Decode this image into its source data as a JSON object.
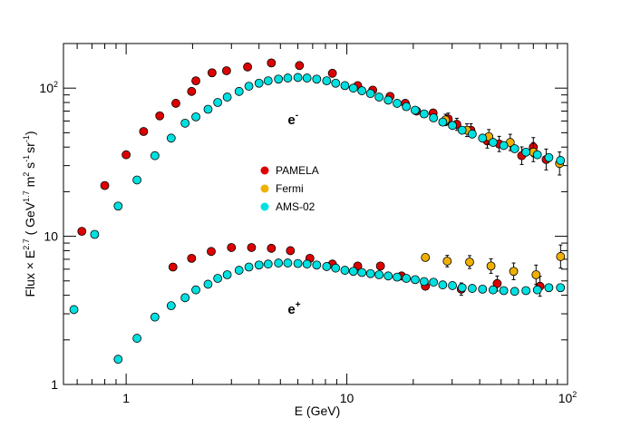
{
  "chart_data": {
    "type": "scatter",
    "xlabel": "E (GeV)",
    "ylabel": {
      "base": "Flux × E",
      "exp": "2.7",
      "unit_pre": " ( GeV",
      "unit_exp": "1.7",
      "unit_mid": " m",
      "unit_m_exp": "2",
      "unit_s": " s",
      "unit_s_exp": "-1",
      "unit_sr": "sr",
      "unit_sr_exp": "-1",
      "unit_post": ")"
    },
    "x_scale": "log",
    "y_scale": "log",
    "xlim": [
      0.52,
      100
    ],
    "ylim": [
      1,
      200
    ],
    "x_ticks": [
      {
        "value": 1,
        "label": "1"
      },
      {
        "value": 10,
        "label": "10"
      },
      {
        "value": 100,
        "label": "10",
        "exp": "2"
      }
    ],
    "y_ticks": [
      {
        "value": 1,
        "label": "1"
      },
      {
        "value": 10,
        "label": "10"
      },
      {
        "value": 100,
        "label": "10",
        "exp": "2"
      }
    ],
    "legend_position": "center",
    "annotations": [
      {
        "text": "e",
        "sup": "-",
        "x": 5.4,
        "y": 57
      },
      {
        "text": "e",
        "sup": "+",
        "x": 5.4,
        "y": 3.0
      }
    ],
    "series": [
      {
        "name": "PAMELA",
        "color": "#dd0000",
        "points": [
          [
            0.63,
            10.8
          ],
          [
            0.8,
            22
          ],
          [
            1.0,
            35.5
          ],
          [
            1.2,
            51
          ],
          [
            1.42,
            65
          ],
          [
            1.68,
            79
          ],
          [
            1.98,
            95
          ],
          [
            2.07,
            112
          ],
          [
            2.45,
            127
          ],
          [
            2.85,
            131
          ],
          [
            3.55,
            139
          ],
          [
            4.55,
            148
          ],
          [
            6.1,
            142
          ],
          [
            8.6,
            126
          ],
          [
            11.2,
            104
          ],
          [
            13.1,
            97
          ],
          [
            15.7,
            88
          ],
          [
            18.4,
            79
          ],
          [
            20.7,
            70
          ],
          [
            24.6,
            68
          ],
          [
            28.8,
            62
          ],
          [
            31.5,
            57
          ],
          [
            36.5,
            52
          ],
          [
            43.3,
            44
          ],
          [
            49,
            42
          ],
          [
            62,
            35
          ],
          [
            70,
            40
          ],
          [
            80,
            33
          ],
          [
            1.63,
            6.2
          ],
          [
            1.98,
            7.1
          ],
          [
            2.43,
            7.9
          ],
          [
            3.0,
            8.4
          ],
          [
            3.7,
            8.4
          ],
          [
            4.55,
            8.3
          ],
          [
            5.55,
            8.0
          ],
          [
            6.8,
            7.1
          ],
          [
            8.6,
            6.5
          ],
          [
            11.2,
            6.3
          ],
          [
            14.2,
            6.3
          ],
          [
            17.7,
            5.4
          ],
          [
            22.7,
            4.6
          ],
          [
            33,
            4.4
          ],
          [
            48,
            4.8
          ],
          [
            75,
            4.6
          ]
        ]
      },
      {
        "name": "Fermi",
        "color": "#f0b000",
        "points": [
          [
            28,
            61
          ],
          [
            35,
            52
          ],
          [
            44,
            47
          ],
          [
            55,
            43
          ],
          [
            70,
            37
          ],
          [
            92,
            31
          ],
          [
            22.7,
            7.2
          ],
          [
            28.5,
            6.8
          ],
          [
            36,
            6.7
          ],
          [
            45,
            6.3
          ],
          [
            57,
            5.8
          ],
          [
            72,
            5.5
          ],
          [
            93,
            7.3
          ]
        ]
      },
      {
        "name": "AMS-02",
        "color": "#00e0e0",
        "points": [
          [
            0.58,
            3.2
          ],
          [
            0.72,
            10.3
          ],
          [
            0.92,
            16
          ],
          [
            1.12,
            24
          ],
          [
            1.35,
            35
          ],
          [
            1.6,
            46
          ],
          [
            1.85,
            58
          ],
          [
            2.07,
            64
          ],
          [
            2.35,
            72
          ],
          [
            2.6,
            80
          ],
          [
            2.87,
            87
          ],
          [
            3.25,
            95
          ],
          [
            3.6,
            103
          ],
          [
            4.0,
            108
          ],
          [
            4.4,
            112
          ],
          [
            4.9,
            115
          ],
          [
            5.4,
            117
          ],
          [
            6.0,
            118
          ],
          [
            6.6,
            117
          ],
          [
            7.3,
            115
          ],
          [
            8.1,
            112
          ],
          [
            8.9,
            108
          ],
          [
            9.8,
            104
          ],
          [
            10.7,
            100
          ],
          [
            11.7,
            96
          ],
          [
            12.8,
            92
          ],
          [
            14,
            87
          ],
          [
            15.4,
            83
          ],
          [
            16.9,
            79
          ],
          [
            18.6,
            75
          ],
          [
            20.4,
            71
          ],
          [
            22.4,
            67
          ],
          [
            24.7,
            63
          ],
          [
            27.2,
            59
          ],
          [
            30.1,
            56
          ],
          [
            33.3,
            52
          ],
          [
            37,
            49
          ],
          [
            41.2,
            46
          ],
          [
            46,
            43
          ],
          [
            51.4,
            41
          ],
          [
            57.6,
            39
          ],
          [
            64.8,
            37
          ],
          [
            73,
            35.5
          ],
          [
            82.3,
            34
          ],
          [
            92.9,
            32.5
          ],
          [
            0.92,
            1.48
          ],
          [
            1.12,
            2.05
          ],
          [
            1.35,
            2.85
          ],
          [
            1.6,
            3.4
          ],
          [
            1.85,
            3.85
          ],
          [
            2.07,
            4.35
          ],
          [
            2.35,
            4.75
          ],
          [
            2.6,
            5.2
          ],
          [
            2.87,
            5.5
          ],
          [
            3.25,
            5.9
          ],
          [
            3.6,
            6.2
          ],
          [
            4.0,
            6.4
          ],
          [
            4.4,
            6.5
          ],
          [
            4.9,
            6.6
          ],
          [
            5.4,
            6.6
          ],
          [
            6.0,
            6.55
          ],
          [
            6.6,
            6.5
          ],
          [
            7.3,
            6.4
          ],
          [
            8.1,
            6.25
          ],
          [
            8.9,
            6.1
          ],
          [
            9.8,
            5.9
          ],
          [
            10.7,
            5.8
          ],
          [
            11.7,
            5.7
          ],
          [
            12.8,
            5.6
          ],
          [
            14,
            5.5
          ],
          [
            15.4,
            5.4
          ],
          [
            16.9,
            5.3
          ],
          [
            18.6,
            5.2
          ],
          [
            20.4,
            5.1
          ],
          [
            22.4,
            4.95
          ],
          [
            24.7,
            4.9
          ],
          [
            27.2,
            4.7
          ],
          [
            30.1,
            4.65
          ],
          [
            33.3,
            4.5
          ],
          [
            37,
            4.45
          ],
          [
            41.2,
            4.4
          ],
          [
            46,
            4.35
          ],
          [
            51.4,
            4.3
          ],
          [
            57.6,
            4.25
          ],
          [
            64.8,
            4.3
          ],
          [
            73,
            4.35
          ],
          [
            82.3,
            4.5
          ],
          [
            92.9,
            4.5
          ]
        ]
      }
    ]
  }
}
